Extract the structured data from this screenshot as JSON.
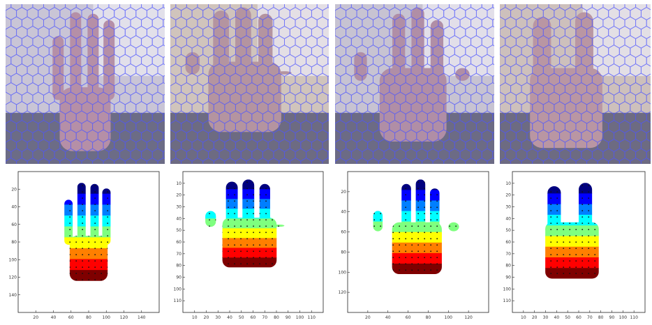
{
  "panels": [
    {
      "id": "p1",
      "photo": {
        "bg": "#c9c5d6",
        "overlay_color": "#4f56ff",
        "skin": "#b58fa7"
      },
      "plot": {
        "xticks": [
          "20",
          "40",
          "60",
          "80",
          "100",
          "120",
          "140"
        ],
        "yticks": [
          "20",
          "40",
          "60",
          "80",
          "100",
          "120",
          "140"
        ]
      }
    },
    {
      "id": "p2",
      "photo": {
        "bg": "#d0c4bc",
        "overlay_color": "#4f56ff",
        "skin": "#b494a0"
      },
      "plot": {
        "xticks": [
          "10",
          "20",
          "30",
          "40",
          "50",
          "60",
          "70",
          "80",
          "90",
          "100",
          "110"
        ],
        "yticks": [
          "10",
          "20",
          "30",
          "40",
          "50",
          "60",
          "70",
          "80",
          "90",
          "100",
          "110"
        ]
      }
    },
    {
      "id": "p3",
      "photo": {
        "bg": "#c7c3d2",
        "overlay_color": "#4f56ff",
        "skin": "#b08ea6"
      },
      "plot": {
        "xticks": [
          "20",
          "40",
          "60",
          "80",
          "100",
          "120"
        ],
        "yticks": [
          "20",
          "40",
          "60",
          "80",
          "100",
          "120"
        ]
      }
    },
    {
      "id": "p4",
      "photo": {
        "bg": "#cdc0bc",
        "overlay_color": "#4f56ff",
        "skin": "#b996a3"
      },
      "plot": {
        "xticks": [
          "10",
          "20",
          "30",
          "40",
          "50",
          "60",
          "70",
          "80",
          "90",
          "100",
          "110"
        ],
        "yticks": [
          "10",
          "20",
          "30",
          "40",
          "50",
          "60",
          "70",
          "80",
          "90",
          "100",
          "110"
        ]
      }
    }
  ],
  "colors": {
    "jet": [
      "#00007f",
      "#0000ff",
      "#007fff",
      "#00ffff",
      "#7fff7f",
      "#ffff00",
      "#ff7f00",
      "#ff0000",
      "#7f0000"
    ],
    "dot": "#111111"
  }
}
